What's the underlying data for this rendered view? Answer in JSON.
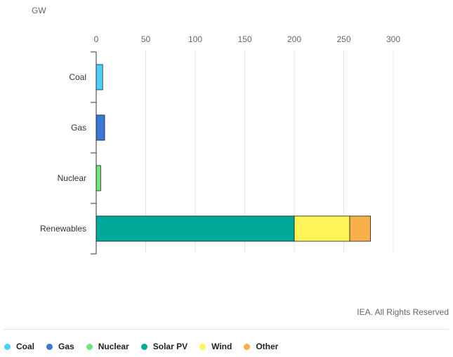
{
  "unit_label": "GW",
  "credit": "IEA. All Rights Reserved",
  "chart_data": {
    "type": "bar",
    "orientation": "horizontal",
    "stacked": true,
    "title": "",
    "xlabel": "GW",
    "ylabel": "",
    "xlim": [
      0,
      300
    ],
    "xticks": [
      0,
      50,
      100,
      150,
      200,
      250,
      300
    ],
    "grid": true,
    "legend_position": "bottom",
    "categories": [
      "Coal",
      "Gas",
      "Nuclear",
      "Renewables"
    ],
    "series": [
      {
        "name": "Coal",
        "color": "#4dd0f5",
        "values": [
          6.5,
          0,
          0,
          0
        ]
      },
      {
        "name": "Gas",
        "color": "#3a78d4",
        "values": [
          0,
          8.5,
          0,
          0
        ]
      },
      {
        "name": "Nuclear",
        "color": "#6ee67a",
        "values": [
          0,
          0,
          4.5,
          0
        ]
      },
      {
        "name": "Solar PV",
        "color": "#00a99a",
        "values": [
          0,
          0,
          0,
          200
        ]
      },
      {
        "name": "Wind",
        "color": "#fff35a",
        "values": [
          0,
          0,
          0,
          56
        ]
      },
      {
        "name": "Other",
        "color": "#f7b04a",
        "values": [
          0,
          0,
          0,
          21
        ]
      }
    ]
  }
}
